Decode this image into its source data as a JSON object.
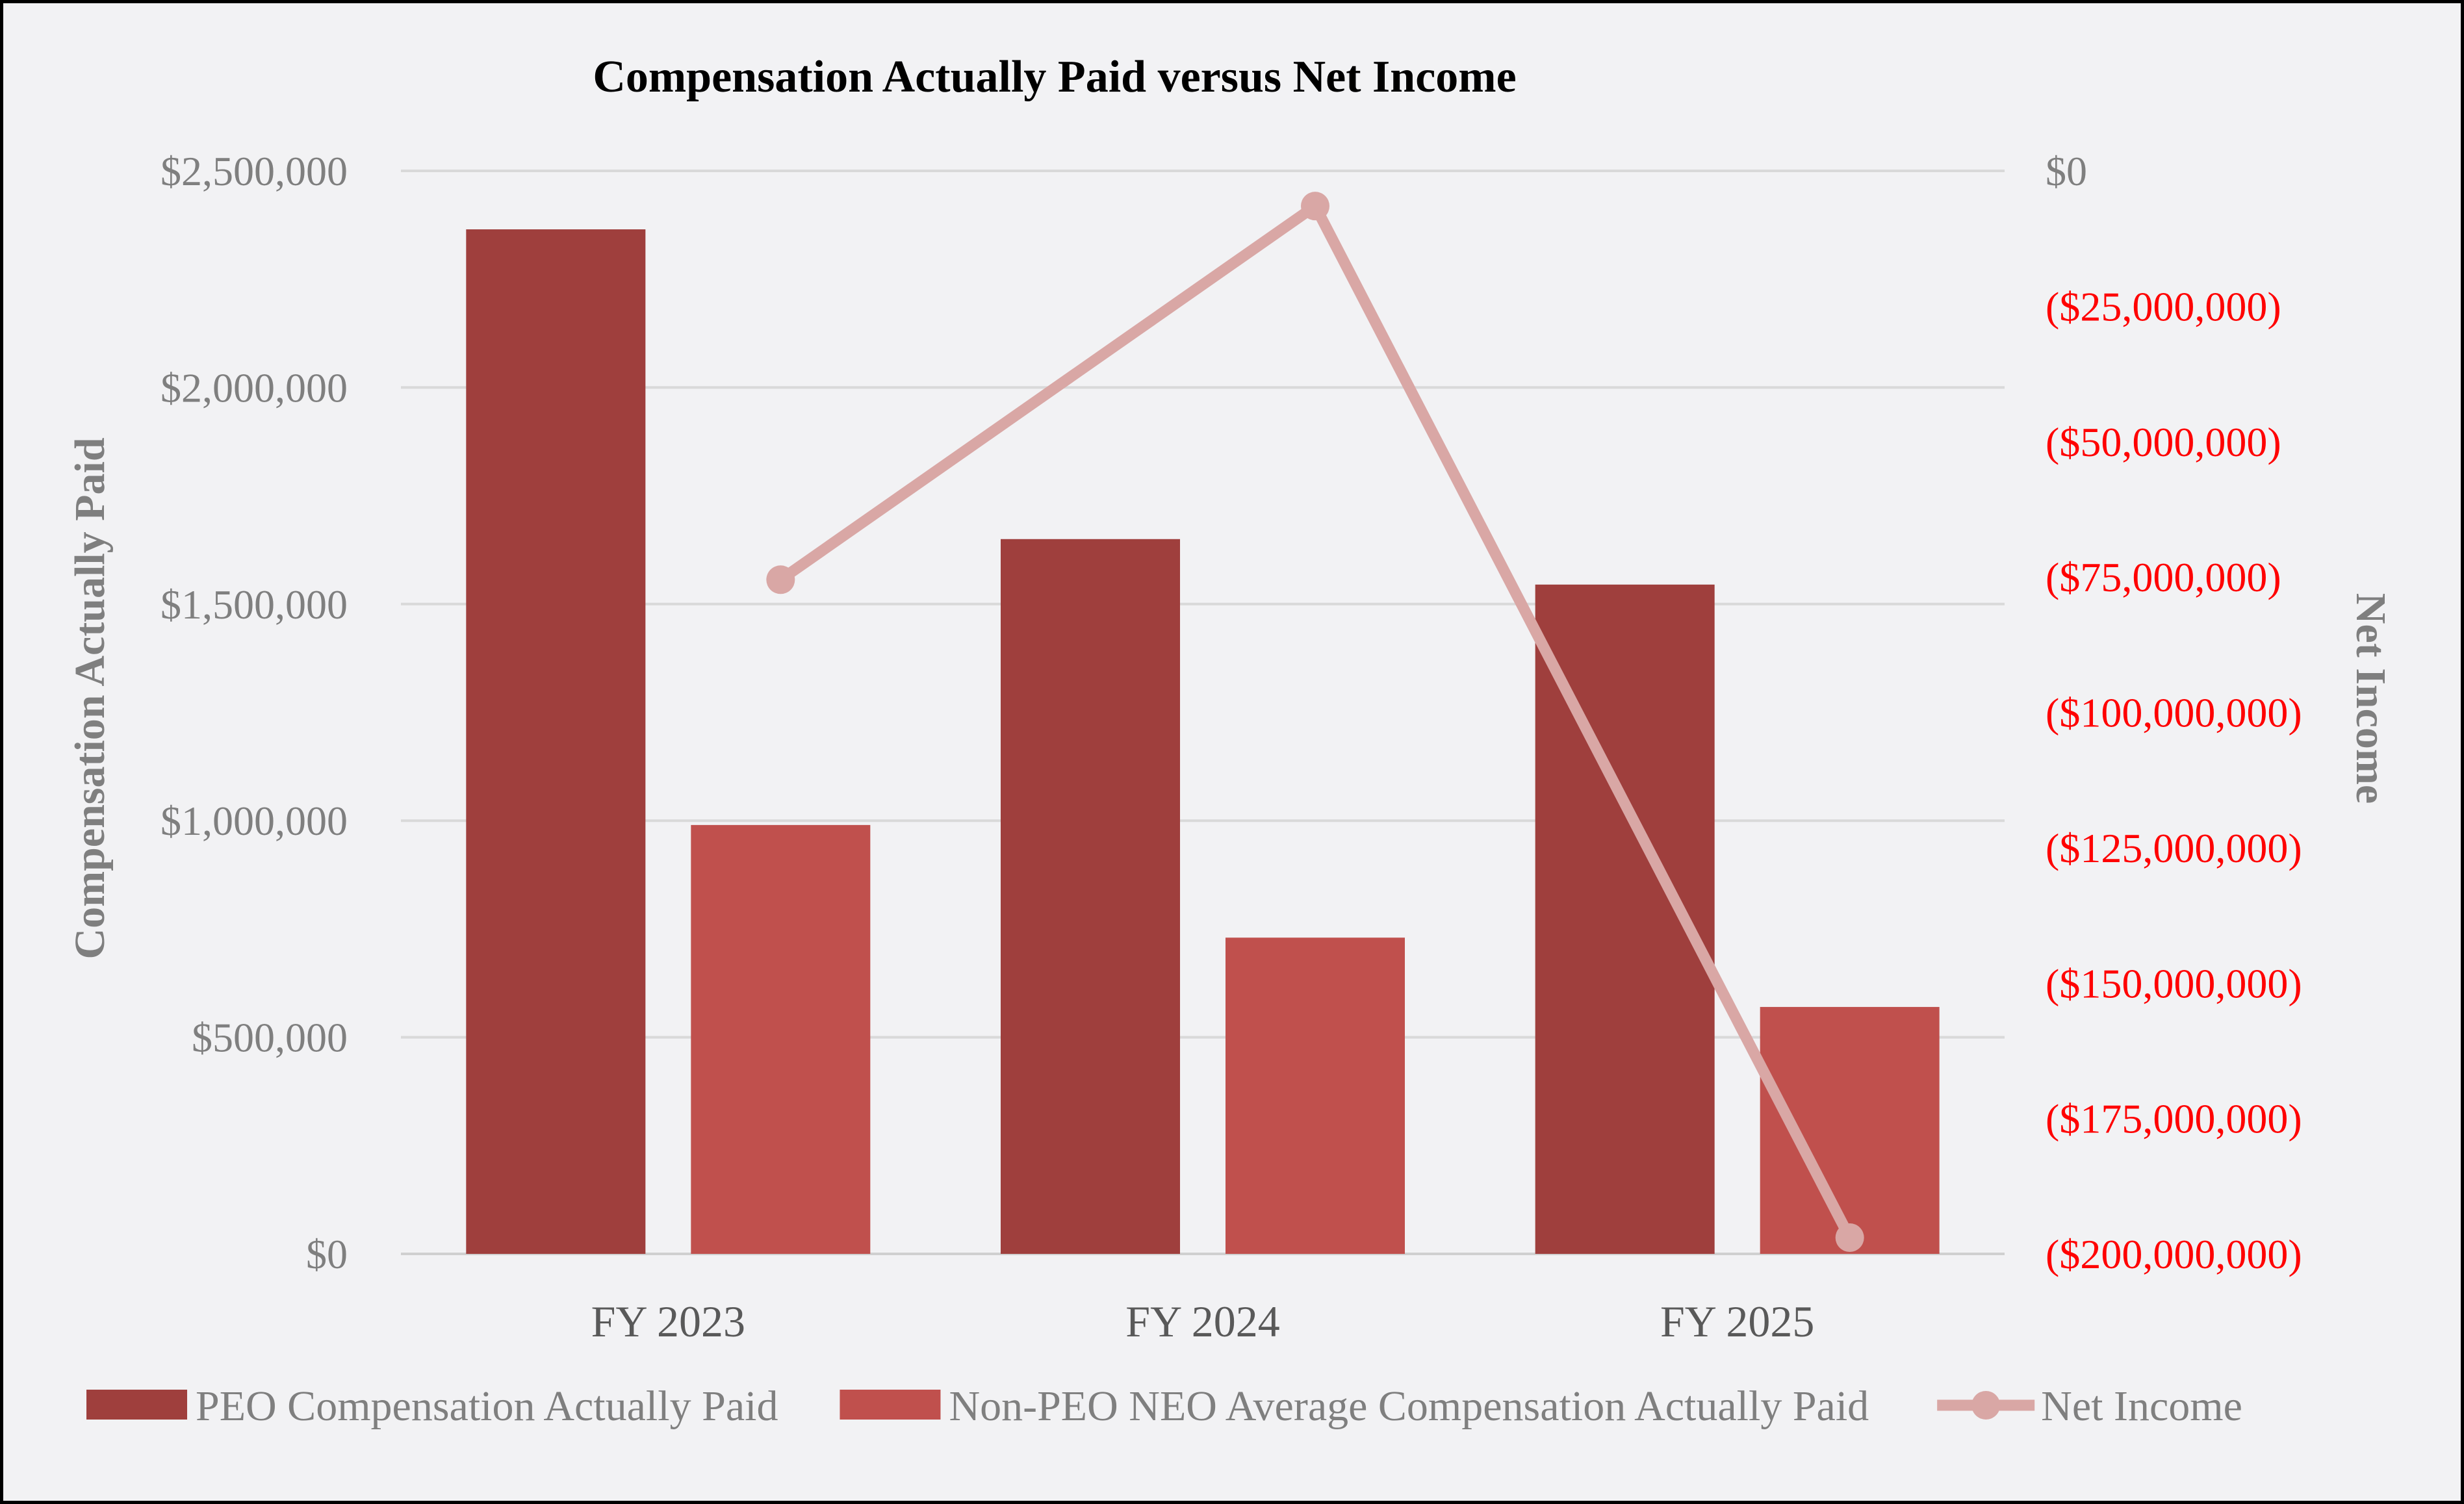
{
  "chart_data": {
    "type": "bar",
    "title": "Compensation Actually Paid versus Net Income",
    "categories": [
      "FY 2023",
      "FY 2024",
      "FY 2025"
    ],
    "series": [
      {
        "name": "PEO Compensation Actually Paid",
        "type": "bar",
        "axis": "left",
        "color": "#9f3f3d",
        "values": [
          2365000,
          1650000,
          1545000
        ]
      },
      {
        "name": "Non-PEO NEO Average Compensation Actually Paid",
        "type": "bar",
        "axis": "left",
        "color": "#c0504d",
        "values": [
          990000,
          730000,
          570000
        ]
      },
      {
        "name": "Net Income",
        "type": "line",
        "axis": "right",
        "color": "#d9a7a5",
        "values": [
          -75500000,
          -6500000,
          -197000000
        ]
      }
    ],
    "y_left": {
      "label": "Compensation Actually Paid",
      "lim": [
        0,
        2500000
      ],
      "ticks": [
        0,
        500000,
        1000000,
        1500000,
        2000000,
        2500000
      ],
      "tick_labels": [
        "$0",
        "$500,000",
        "$1,000,000",
        "$1,500,000",
        "$2,000,000",
        "$2,500,000"
      ]
    },
    "y_right": {
      "label": "Net Income",
      "lim": [
        -200000000,
        0
      ],
      "ticks": [
        0,
        -25000000,
        -50000000,
        -75000000,
        -100000000,
        -125000000,
        -150000000,
        -175000000,
        -200000000
      ],
      "tick_labels": [
        "$0",
        "($25,000,000)",
        "($50,000,000)",
        "($75,000,000)",
        "($100,000,000)",
        "($125,000,000)",
        "($150,000,000)",
        "($175,000,000)",
        "($200,000,000)"
      ],
      "negative_label_color": "#ff0000"
    },
    "grid": true,
    "legend": "bottom"
  }
}
